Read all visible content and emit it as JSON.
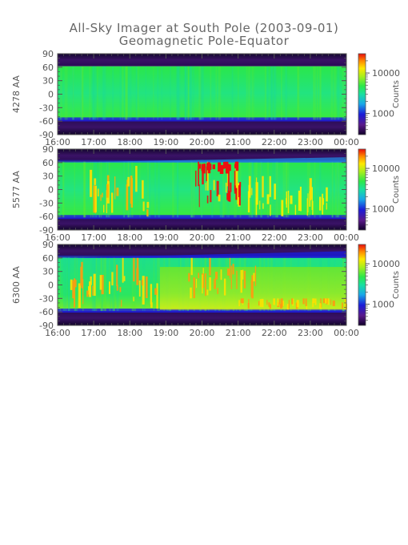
{
  "chart": {
    "title_line1": "All-Sky Imager at South Pole (2003-09-01)",
    "title_line2": "Geomagnetic Pole-Equator"
  },
  "chart_data": {
    "type": "heatmap",
    "title": "All-Sky Imager at South Pole (2003-09-01)",
    "subtitle": "Geomagnetic Pole-Equator",
    "x_ticks": [
      "16:00",
      "17:00",
      "18:00",
      "19:00",
      "20:00",
      "21:00",
      "22:00",
      "23:00",
      "00:00"
    ],
    "y_ticks": [
      90,
      60,
      30,
      0,
      -30,
      -60,
      -90
    ],
    "ylim": [
      -90,
      90
    ],
    "colorbar": {
      "label": "Counts",
      "ticks": [
        10000,
        1000
      ],
      "scale": "log",
      "range": [
        300,
        30000
      ]
    },
    "colors": {
      "background_dark": "#1a0a3a",
      "low": "#1d1ddf",
      "mid": "#20e860",
      "high": "#ffee00",
      "max": "#ee1010"
    },
    "panels": [
      {
        "channel": "4278 AA",
        "data_lat_range": [
          -57,
          62
        ],
        "dominant_level": "green",
        "bright_features": []
      },
      {
        "channel": "5577 AA",
        "data_lat_range": [
          -62,
          62
        ],
        "dominant_level": "green",
        "bright_features": [
          {
            "start": "16:45",
            "end": "18:30",
            "lat": [
              -60,
              60
            ],
            "level": "yellow-orange"
          },
          {
            "start": "19:45",
            "end": "21:05",
            "lat": [
              -40,
              62
            ],
            "level": "red"
          },
          {
            "start": "21:15",
            "end": "23:30",
            "lat": [
              -60,
              30
            ],
            "level": "yellow"
          }
        ]
      },
      {
        "channel": "6300 AA",
        "data_lat_range": [
          -58,
          62
        ],
        "dominant_level": "yellow-green",
        "bright_features": [
          {
            "start": "16:20",
            "end": "18:45",
            "lat": [
              -55,
              60
            ],
            "level": "orange"
          },
          {
            "start": "19:30",
            "end": "21:30",
            "lat": [
              -30,
              60
            ],
            "level": "orange"
          },
          {
            "start": "21:00",
            "end": "00:00",
            "lat": [
              -55,
              -30
            ],
            "level": "orange"
          }
        ]
      }
    ]
  }
}
